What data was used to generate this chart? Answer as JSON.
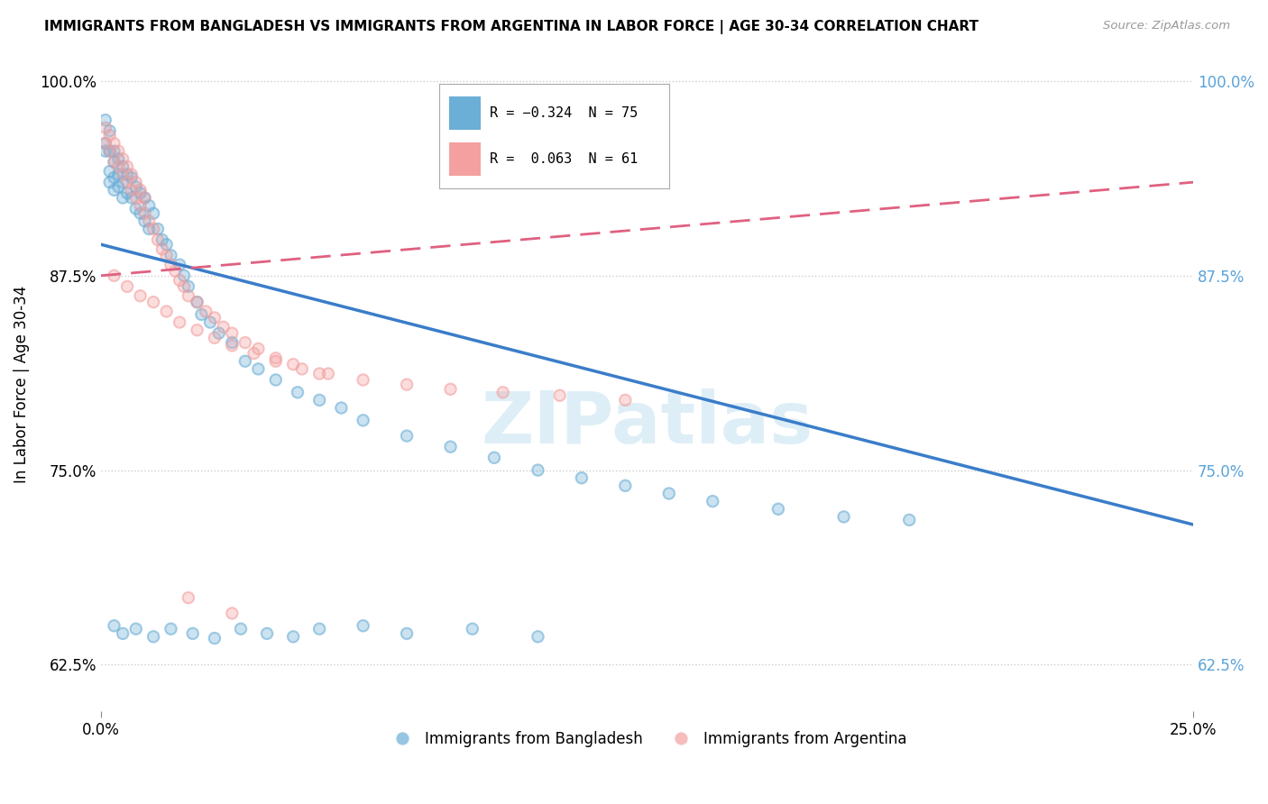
{
  "title": "IMMIGRANTS FROM BANGLADESH VS IMMIGRANTS FROM ARGENTINA IN LABOR FORCE | AGE 30-34 CORRELATION CHART",
  "source": "Source: ZipAtlas.com",
  "ylabel": "In Labor Force | Age 30-34",
  "x_min": 0.0,
  "x_max": 0.25,
  "y_min": 0.595,
  "y_max": 1.015,
  "y_ticks": [
    0.625,
    0.75,
    0.875,
    1.0
  ],
  "y_tick_labels": [
    "62.5%",
    "75.0%",
    "87.5%",
    "100.0%"
  ],
  "bangladesh_color": "#6baed6",
  "argentina_color": "#f4a0a0",
  "bangladesh_R": -0.324,
  "bangladesh_N": 75,
  "argentina_R": 0.063,
  "argentina_N": 61,
  "bangladesh_line_color": "#3a7dc9",
  "argentina_line_color": "#e06080",
  "watermark": "ZIPatlas",
  "bd_line_x0": 0.0,
  "bd_line_y0": 0.895,
  "bd_line_x1": 0.25,
  "bd_line_y1": 0.715,
  "ar_line_x0": 0.0,
  "ar_line_y0": 0.875,
  "ar_line_x1": 0.25,
  "ar_line_y1": 0.935,
  "legend_label_bd": "Immigrants from Bangladesh",
  "legend_label_ar": "Immigrants from Argentina",
  "bangladesh_scatter_x": [
    0.001,
    0.001,
    0.001,
    0.002,
    0.002,
    0.002,
    0.002,
    0.003,
    0.003,
    0.003,
    0.003,
    0.004,
    0.004,
    0.004,
    0.005,
    0.005,
    0.005,
    0.006,
    0.006,
    0.007,
    0.007,
    0.008,
    0.008,
    0.009,
    0.009,
    0.01,
    0.01,
    0.011,
    0.011,
    0.012,
    0.013,
    0.014,
    0.015,
    0.016,
    0.018,
    0.019,
    0.02,
    0.022,
    0.023,
    0.025,
    0.027,
    0.03,
    0.033,
    0.036,
    0.04,
    0.045,
    0.05,
    0.055,
    0.06,
    0.07,
    0.08,
    0.09,
    0.1,
    0.11,
    0.12,
    0.13,
    0.14,
    0.155,
    0.17,
    0.185,
    0.003,
    0.005,
    0.008,
    0.012,
    0.016,
    0.021,
    0.026,
    0.032,
    0.038,
    0.044,
    0.05,
    0.06,
    0.07,
    0.085,
    0.1
  ],
  "bangladesh_scatter_y": [
    0.975,
    0.96,
    0.955,
    0.968,
    0.955,
    0.942,
    0.935,
    0.955,
    0.948,
    0.938,
    0.93,
    0.95,
    0.94,
    0.932,
    0.945,
    0.935,
    0.925,
    0.94,
    0.928,
    0.938,
    0.925,
    0.932,
    0.918,
    0.928,
    0.915,
    0.925,
    0.91,
    0.92,
    0.905,
    0.915,
    0.905,
    0.898,
    0.895,
    0.888,
    0.882,
    0.875,
    0.868,
    0.858,
    0.85,
    0.845,
    0.838,
    0.832,
    0.82,
    0.815,
    0.808,
    0.8,
    0.795,
    0.79,
    0.782,
    0.772,
    0.765,
    0.758,
    0.75,
    0.745,
    0.74,
    0.735,
    0.73,
    0.725,
    0.72,
    0.718,
    0.65,
    0.645,
    0.648,
    0.643,
    0.648,
    0.645,
    0.642,
    0.648,
    0.645,
    0.643,
    0.648,
    0.65,
    0.645,
    0.648,
    0.643
  ],
  "argentina_scatter_x": [
    0.001,
    0.001,
    0.002,
    0.002,
    0.003,
    0.003,
    0.004,
    0.004,
    0.005,
    0.005,
    0.006,
    0.006,
    0.007,
    0.007,
    0.008,
    0.008,
    0.009,
    0.009,
    0.01,
    0.01,
    0.011,
    0.012,
    0.013,
    0.014,
    0.015,
    0.016,
    0.017,
    0.018,
    0.019,
    0.02,
    0.022,
    0.024,
    0.026,
    0.028,
    0.03,
    0.033,
    0.036,
    0.04,
    0.044,
    0.05,
    0.003,
    0.006,
    0.009,
    0.012,
    0.015,
    0.018,
    0.022,
    0.026,
    0.03,
    0.035,
    0.04,
    0.046,
    0.052,
    0.06,
    0.07,
    0.08,
    0.092,
    0.105,
    0.12,
    0.02,
    0.03
  ],
  "argentina_scatter_y": [
    0.97,
    0.96,
    0.965,
    0.955,
    0.96,
    0.948,
    0.955,
    0.945,
    0.95,
    0.94,
    0.945,
    0.935,
    0.94,
    0.93,
    0.935,
    0.925,
    0.93,
    0.92,
    0.925,
    0.915,
    0.91,
    0.905,
    0.898,
    0.892,
    0.888,
    0.882,
    0.878,
    0.872,
    0.868,
    0.862,
    0.858,
    0.852,
    0.848,
    0.842,
    0.838,
    0.832,
    0.828,
    0.822,
    0.818,
    0.812,
    0.875,
    0.868,
    0.862,
    0.858,
    0.852,
    0.845,
    0.84,
    0.835,
    0.83,
    0.825,
    0.82,
    0.815,
    0.812,
    0.808,
    0.805,
    0.802,
    0.8,
    0.798,
    0.795,
    0.668,
    0.658
  ]
}
